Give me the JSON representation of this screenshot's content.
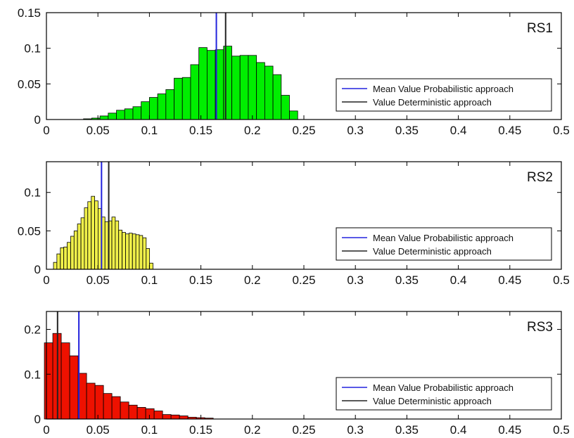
{
  "chart_data": [
    {
      "type": "bar",
      "panel_label": "RS1",
      "bar_color": "#00ee00",
      "xlim": [
        0,
        0.5
      ],
      "ylim": [
        0,
        0.15
      ],
      "xticks": [
        "0",
        "0.05",
        "0.1",
        "0.15",
        "0.2",
        "0.25",
        "0.3",
        "0.35",
        "0.4",
        "0.45",
        "0.5"
      ],
      "yticks": [
        "0",
        "0.05",
        "0.1",
        "0.15"
      ],
      "xtick_values": [
        0,
        0.05,
        0.1,
        0.15,
        0.2,
        0.25,
        0.3,
        0.35,
        0.4,
        0.45,
        0.5
      ],
      "ytick_values": [
        0,
        0.05,
        0.1,
        0.15
      ],
      "bin_width": 0.008,
      "bin_centers": [
        0.04,
        0.048,
        0.056,
        0.064,
        0.072,
        0.08,
        0.088,
        0.096,
        0.104,
        0.112,
        0.12,
        0.128,
        0.136,
        0.144,
        0.152,
        0.16,
        0.168,
        0.176,
        0.184,
        0.192,
        0.2,
        0.208,
        0.216,
        0.224,
        0.232,
        0.24
      ],
      "values": [
        0.001,
        0.002,
        0.005,
        0.009,
        0.013,
        0.015,
        0.018,
        0.025,
        0.031,
        0.036,
        0.042,
        0.058,
        0.059,
        0.077,
        0.101,
        0.097,
        0.098,
        0.103,
        0.089,
        0.09,
        0.09,
        0.08,
        0.075,
        0.063,
        0.034,
        0.012
      ],
      "lines": [
        {
          "name": "Mean Value Probabilistic approach",
          "x": 0.165,
          "color": "#2222dd"
        },
        {
          "name": "Value Deterministic approach",
          "x": 0.174,
          "color": "#222222"
        }
      ],
      "legend_placement": "right",
      "grid": false
    },
    {
      "type": "bar",
      "panel_label": "RS2",
      "bar_color": "#f0f04a",
      "xlim": [
        0,
        0.5
      ],
      "ylim": [
        0,
        0.14
      ],
      "xticks": [
        "0",
        "0.05",
        "0.1",
        "0.15",
        "0.2",
        "0.25",
        "0.3",
        "0.35",
        "0.4",
        "0.45",
        "0.5"
      ],
      "yticks": [
        "0",
        "0.05",
        "0.1"
      ],
      "xtick_values": [
        0,
        0.05,
        0.1,
        0.15,
        0.2,
        0.25,
        0.3,
        0.35,
        0.4,
        0.45,
        0.5
      ],
      "ytick_values": [
        0,
        0.05,
        0.1
      ],
      "bin_width": 0.0033,
      "bin_centers": [
        0.0085,
        0.0118,
        0.0152,
        0.0185,
        0.0218,
        0.0252,
        0.0285,
        0.0318,
        0.0352,
        0.0385,
        0.0418,
        0.0452,
        0.0485,
        0.0518,
        0.0552,
        0.0585,
        0.0618,
        0.0652,
        0.0685,
        0.0718,
        0.0752,
        0.0785,
        0.0818,
        0.0852,
        0.0885,
        0.0918,
        0.0952,
        0.0985,
        0.1018
      ],
      "values": [
        0.009,
        0.02,
        0.028,
        0.029,
        0.035,
        0.043,
        0.05,
        0.059,
        0.067,
        0.08,
        0.088,
        0.095,
        0.089,
        0.079,
        0.068,
        0.062,
        0.063,
        0.068,
        0.063,
        0.051,
        0.048,
        0.046,
        0.047,
        0.046,
        0.045,
        0.044,
        0.041,
        0.027,
        0.008
      ],
      "lines": [
        {
          "name": "Mean Value Probabilistic approach",
          "x": 0.0535,
          "color": "#2222dd"
        },
        {
          "name": "Value Deterministic approach",
          "x": 0.0605,
          "color": "#222222"
        }
      ],
      "legend_placement": "right",
      "grid": false
    },
    {
      "type": "bar",
      "panel_label": "RS3",
      "bar_color": "#ee1100",
      "xlim": [
        0,
        0.5
      ],
      "ylim": [
        0,
        0.24
      ],
      "xticks": [
        "0",
        "0.05",
        "0.1",
        "0.15",
        "0.2",
        "0.25",
        "0.3",
        "0.35",
        "0.4",
        "0.45",
        "0.5"
      ],
      "yticks": [
        "0",
        "0.1",
        "0.2"
      ],
      "xtick_values": [
        0,
        0.05,
        0.1,
        0.15,
        0.2,
        0.25,
        0.3,
        0.35,
        0.4,
        0.45,
        0.5
      ],
      "ytick_values": [
        0,
        0.1,
        0.2
      ],
      "bin_width": 0.0082,
      "bin_centers": [
        0.0021,
        0.0103,
        0.0185,
        0.0267,
        0.0349,
        0.0431,
        0.0513,
        0.0595,
        0.0677,
        0.0759,
        0.0841,
        0.0923,
        0.1005,
        0.1087,
        0.1169,
        0.1251,
        0.1333,
        0.1415,
        0.1497,
        0.1579
      ],
      "values": [
        0.17,
        0.191,
        0.17,
        0.141,
        0.102,
        0.08,
        0.075,
        0.057,
        0.05,
        0.038,
        0.031,
        0.026,
        0.023,
        0.018,
        0.01,
        0.009,
        0.007,
        0.004,
        0.003,
        0.002
      ],
      "lines": [
        {
          "name": "Mean Value Probabilistic approach",
          "x": 0.0315,
          "color": "#2222dd"
        },
        {
          "name": "Value Deterministic approach",
          "x": 0.0108,
          "color": "#222222"
        }
      ],
      "legend_placement": "right",
      "grid": false
    }
  ]
}
